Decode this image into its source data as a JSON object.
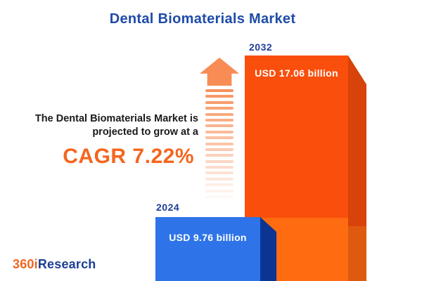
{
  "title": "Dental Biomaterials Market",
  "blurb": {
    "line1": "The Dental Biomaterials Market is",
    "line2": "projected to grow at a",
    "cagr_text": "CAGR 7.22%"
  },
  "logo": {
    "prefix": "360i",
    "suffix": "Research"
  },
  "chart_data": {
    "type": "bar",
    "title": "Dental Biomaterials Market",
    "categories": [
      "2024",
      "2032"
    ],
    "values": [
      9.76,
      17.06
    ],
    "unit": "USD billion",
    "value_labels": [
      "USD 9.76 billion",
      "USD 17.06 billion"
    ],
    "cagr_percent": 7.22,
    "annotations": [
      "The Dental Biomaterials Market is projected to grow at a CAGR 7.22%"
    ],
    "legend": "none",
    "grid": false,
    "style": "3d-infographic-bars, growth arrow made of fading stripes between text and bars"
  },
  "colors": {
    "title-blue": "#1E4BA8",
    "year-blue": "#203E99",
    "text-dark": "#1A1A1A",
    "accent-orange": "#F4661F",
    "arrow-orange": "#F78C55",
    "bar2024-front": "#2E74E8",
    "bar2024-side": "#0B3493",
    "bar2032-front-top": "#F94E0C",
    "bar2032-front-bottom": "#FE6B10",
    "bar2032-side-top": "#D8420B",
    "bar2032-side-bottom": "#DE5A10",
    "logo-orange": "#F26522",
    "logo-blue": "#1C3F94",
    "value-white": "#FFFFFF",
    "background": "#FFFFFF"
  }
}
